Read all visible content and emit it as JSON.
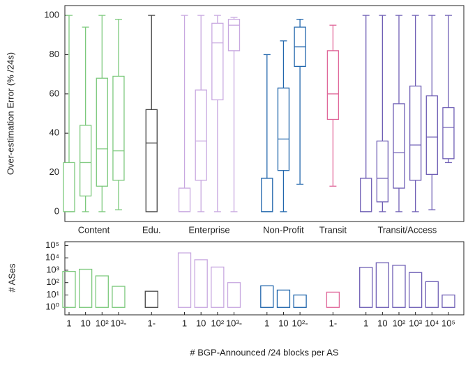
{
  "chart_data": [
    {
      "type": "box",
      "ylabel": "Over-estimation Error (% /24s)",
      "ylim": [
        -5,
        105
      ],
      "yticks": [
        0,
        20,
        40,
        60,
        80,
        100
      ],
      "groups": [
        {
          "name": "Content",
          "color": "#7dc97d",
          "boxes": [
            {
              "min": 0,
              "q1": 0,
              "median": 0,
              "q3": 25,
              "max": 100
            },
            {
              "min": 0,
              "q1": 8,
              "median": 25,
              "q3": 44,
              "max": 94
            },
            {
              "min": 0,
              "q1": 13,
              "median": 32,
              "q3": 68,
              "max": 100
            },
            {
              "min": 1,
              "q1": 16,
              "median": 31,
              "q3": 69,
              "max": 98
            }
          ]
        },
        {
          "name": "Edu.",
          "color": "#444444",
          "boxes": [
            {
              "min": 0,
              "q1": 0,
              "median": 35,
              "q3": 52,
              "max": 100
            }
          ]
        },
        {
          "name": "Enterprise",
          "color": "#c8a8e0",
          "boxes": [
            {
              "min": 0,
              "q1": 0,
              "median": 0,
              "q3": 12,
              "max": 100
            },
            {
              "min": 0,
              "q1": 16,
              "median": 36,
              "q3": 62,
              "max": 100
            },
            {
              "min": 0,
              "q1": 57,
              "median": 86,
              "q3": 96,
              "max": 100
            },
            {
              "min": 0,
              "q1": 82,
              "median": 95,
              "q3": 98,
              "max": 99
            }
          ]
        },
        {
          "name": "Non-Profit",
          "color": "#2166ac",
          "boxes": [
            {
              "min": 0,
              "q1": 0,
              "median": 0,
              "q3": 17,
              "max": 80
            },
            {
              "min": 0,
              "q1": 21,
              "median": 37,
              "q3": 63,
              "max": 87
            },
            {
              "min": 14,
              "q1": 74,
              "median": 84,
              "q3": 94,
              "max": 98
            }
          ]
        },
        {
          "name": "Transit",
          "color": "#e0689a",
          "boxes": [
            {
              "min": 13,
              "q1": 47,
              "median": 60,
              "q3": 82,
              "max": 95
            }
          ]
        },
        {
          "name": "Transit/Access",
          "color": "#6f5fb5",
          "boxes": [
            {
              "min": 0,
              "q1": 0,
              "median": 0,
              "q3": 17,
              "max": 100
            },
            {
              "min": 0,
              "q1": 5,
              "median": 17,
              "q3": 36,
              "max": 100
            },
            {
              "min": 0,
              "q1": 12,
              "median": 30,
              "q3": 55,
              "max": 100
            },
            {
              "min": 0,
              "q1": 16,
              "median": 34,
              "q3": 64,
              "max": 100
            },
            {
              "min": 1,
              "q1": 19,
              "median": 38,
              "q3": 59,
              "max": 100
            },
            {
              "min": 25,
              "q1": 27,
              "median": 43,
              "q3": 53,
              "max": 100
            }
          ]
        }
      ]
    },
    {
      "type": "bar",
      "ylabel": "# ASes",
      "xlabel": "# BGP-Announced /24 blocks per AS",
      "log_scale": true,
      "ylim": [
        0.25,
        200000
      ],
      "yticks": [
        {
          "value": 1,
          "label": "10⁰"
        },
        {
          "value": 10,
          "label": "10¹"
        },
        {
          "value": 100,
          "label": "10²"
        },
        {
          "value": 1000,
          "label": "10³"
        },
        {
          "value": 10000,
          "label": "10⁴"
        },
        {
          "value": 100000,
          "label": "10⁵"
        }
      ],
      "groups": [
        {
          "color": "#7dc97d",
          "categories": [
            "1",
            "10",
            "10²",
            "10³-"
          ],
          "values": [
            800,
            1200,
            350,
            50
          ]
        },
        {
          "color": "#444444",
          "categories": [
            "1-"
          ],
          "values": [
            20
          ]
        },
        {
          "color": "#c8a8e0",
          "categories": [
            "1",
            "10",
            "10²",
            "10³-"
          ],
          "values": [
            25000,
            7000,
            1800,
            100
          ]
        },
        {
          "color": "#2166ac",
          "categories": [
            "1",
            "10",
            "10²-"
          ],
          "values": [
            55,
            25,
            10
          ]
        },
        {
          "color": "#e0689a",
          "categories": [
            "1-"
          ],
          "values": [
            17
          ]
        },
        {
          "color": "#6f5fb5",
          "categories": [
            "1",
            "10",
            "10²",
            "10³",
            "10⁴",
            "10⁵"
          ],
          "values": [
            1700,
            4000,
            2500,
            650,
            120,
            10
          ]
        }
      ]
    }
  ]
}
